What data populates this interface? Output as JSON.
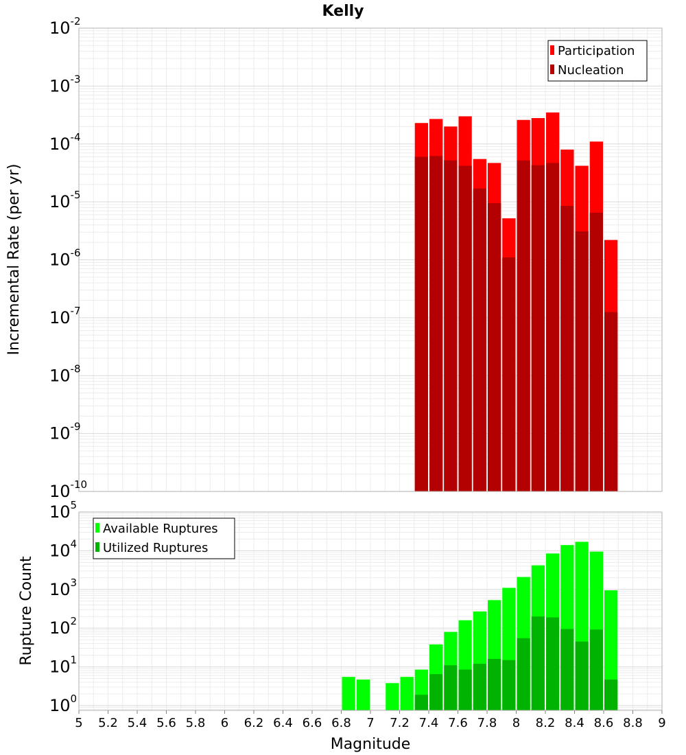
{
  "figure": {
    "title": "Kelly",
    "xlabel": "Magnitude"
  },
  "chart_data": [
    {
      "type": "bar",
      "title": "Kelly",
      "xlabel": "Magnitude",
      "ylabel": "Incremental Rate (per yr)",
      "yscale": "log",
      "xlim": [
        5,
        9
      ],
      "ylim": [
        1e-10,
        0.01
      ],
      "x_ticks": [
        "5",
        "5.2",
        "5.4",
        "5.6",
        "5.8",
        "6",
        "6.2",
        "6.4",
        "6.6",
        "6.8",
        "7",
        "7.2",
        "7.4",
        "7.6",
        "7.8",
        "8",
        "8.2",
        "8.4",
        "8.6",
        "8.8",
        "9"
      ],
      "y_ticks": [
        {
          "base": "10",
          "exp": "-2"
        },
        {
          "base": "10",
          "exp": "-3"
        },
        {
          "base": "10",
          "exp": "-4"
        },
        {
          "base": "10",
          "exp": "-5"
        },
        {
          "base": "10",
          "exp": "-6"
        },
        {
          "base": "10",
          "exp": "-7"
        },
        {
          "base": "10",
          "exp": "-8"
        },
        {
          "base": "10",
          "exp": "-9"
        },
        {
          "base": "10",
          "exp": "-10"
        }
      ],
      "bin_width": 0.1,
      "x": [
        7.35,
        7.45,
        7.55,
        7.65,
        7.75,
        7.85,
        7.95,
        8.05,
        8.15,
        8.25,
        8.35,
        8.45,
        8.55,
        8.65
      ],
      "grid": true,
      "legend_position": "top-right",
      "series": [
        {
          "name": "Participation",
          "color": "#ff0000",
          "values": [
            0.00023,
            0.00027,
            0.0002,
            0.0003,
            5.5e-05,
            4.7e-05,
            5.2e-06,
            0.00026,
            0.00028,
            0.00035,
            8e-05,
            4.2e-05,
            0.00011,
            2.2e-06
          ]
        },
        {
          "name": "Nucleation",
          "color": "#b30000",
          "values": [
            6e-05,
            6.2e-05,
            5.2e-05,
            4.2e-05,
            1.7e-05,
            9.5e-06,
            1.1e-06,
            5.2e-05,
            4.3e-05,
            4.7e-05,
            8.5e-06,
            3.1e-06,
            6.5e-06,
            1.25e-07
          ]
        }
      ]
    },
    {
      "type": "bar",
      "xlabel": "Magnitude",
      "ylabel": "Rupture Count",
      "yscale": "log",
      "xlim": [
        5,
        9
      ],
      "ylim": [
        0.75,
        100000
      ],
      "x_ticks": [
        "5",
        "5.2",
        "5.4",
        "5.6",
        "5.8",
        "6",
        "6.2",
        "6.4",
        "6.6",
        "6.8",
        "7",
        "7.2",
        "7.4",
        "7.6",
        "7.8",
        "8",
        "8.2",
        "8.4",
        "8.6",
        "8.8",
        "9"
      ],
      "y_ticks": [
        {
          "base": "10",
          "exp": "5"
        },
        {
          "base": "10",
          "exp": "4"
        },
        {
          "base": "10",
          "exp": "3"
        },
        {
          "base": "10",
          "exp": "2"
        },
        {
          "base": "10",
          "exp": "1"
        },
        {
          "base": "10",
          "exp": "0"
        }
      ],
      "bin_width": 0.1,
      "grid": true,
      "legend_position": "top-left",
      "series": [
        {
          "name": "Available Ruptures",
          "color": "#00ff00",
          "x": [
            6.85,
            6.95,
            7.15,
            7.25,
            7.35,
            7.45,
            7.55,
            7.65,
            7.75,
            7.85,
            7.95,
            8.05,
            8.15,
            8.25,
            8.35,
            8.45,
            8.55,
            8.65
          ],
          "values": [
            5.5,
            4.7,
            3.8,
            5.5,
            8.5,
            38,
            80,
            160,
            270,
            530,
            1100,
            2100,
            4200,
            8500,
            14000,
            17000,
            9500,
            950
          ]
        },
        {
          "name": "Utilized Ruptures",
          "color": "#00b300",
          "x": [
            7.35,
            7.45,
            7.55,
            7.65,
            7.75,
            7.85,
            7.95,
            8.05,
            8.15,
            8.25,
            8.35,
            8.45,
            8.55,
            8.65
          ],
          "values": [
            1.9,
            6.5,
            11,
            8.5,
            12,
            16,
            15,
            55,
            200,
            190,
            95,
            45,
            92,
            4.7
          ]
        }
      ]
    }
  ]
}
